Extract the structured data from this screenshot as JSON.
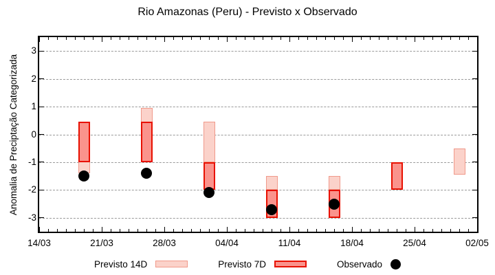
{
  "chart_data": {
    "type": "bar",
    "title": "Rio Amazonas (Peru) - Previsto x Observado",
    "xlabel": "",
    "ylabel": "Anomalia de Preciptação Categorizada",
    "ylim": [
      -3.5,
      3.5
    ],
    "yticks": [
      3,
      2,
      1,
      0,
      -1,
      -2,
      -3
    ],
    "grid": "horizontal-dashed",
    "legend_position": "bottom",
    "x_axis": {
      "tick_labels": [
        "14/03",
        "21/03",
        "28/03",
        "04/04",
        "11/04",
        "18/04",
        "25/04",
        "02/05"
      ],
      "tick_days": [
        0,
        7,
        14,
        21,
        28,
        35,
        42,
        49
      ],
      "total_days": 49,
      "minor_tick_every_days": 1
    },
    "series_note": "previsto ranges are [min,max] category anomaly; observado is a point value",
    "groups": [
      {
        "date": "19/03",
        "day": 5,
        "previsto_14d": [
          -1.4,
          0.45
        ],
        "previsto_7d": [
          -1.0,
          0.45
        ],
        "observado": -1.5
      },
      {
        "date": "26/03",
        "day": 12,
        "previsto_14d": [
          -1.0,
          0.95
        ],
        "previsto_7d": [
          -1.0,
          0.45
        ],
        "observado": -1.4
      },
      {
        "date": "02/04",
        "day": 19,
        "previsto_14d": [
          -1.0,
          0.45
        ],
        "previsto_7d": [
          -2.0,
          -1.0
        ],
        "observado": -2.1
      },
      {
        "date": "09/04",
        "day": 26,
        "previsto_14d": [
          -2.0,
          -1.5
        ],
        "previsto_7d": [
          -3.0,
          -2.0
        ],
        "observado": -2.7
      },
      {
        "date": "16/04",
        "day": 33,
        "previsto_14d": [
          -2.0,
          -1.5
        ],
        "previsto_7d": [
          -3.0,
          -2.0
        ],
        "observado": -2.5
      },
      {
        "date": "23/04",
        "day": 40,
        "previsto_14d": null,
        "previsto_7d": [
          -2.0,
          -1.0
        ],
        "observado": null
      },
      {
        "date": "30/04",
        "day": 47,
        "previsto_14d": [
          -1.45,
          -0.5
        ],
        "previsto_7d": null,
        "observado": null
      }
    ],
    "legend": [
      {
        "label": "Previsto 14D",
        "type": "bar14"
      },
      {
        "label": "Previsto 7D",
        "type": "bar7"
      },
      {
        "label": "Observado",
        "type": "dot"
      }
    ],
    "colors": {
      "previsto_14d_fill": "#fbd2ca",
      "previsto_14d_border": "#f0998a",
      "previsto_7d_fill": "#fa938c",
      "previsto_7d_border": "#e81000",
      "observado": "#000000",
      "grid": "#999999",
      "axis": "#000000"
    }
  }
}
